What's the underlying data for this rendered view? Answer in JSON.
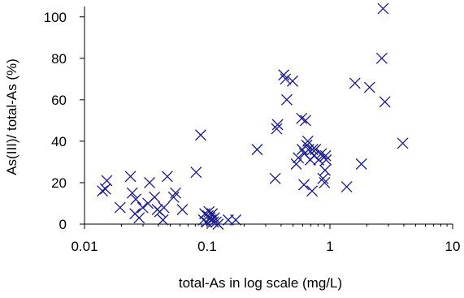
{
  "chart_data": {
    "type": "scatter",
    "title": "",
    "xlabel": "total-As in log scale (mg/L)",
    "ylabel": "As(III)/ total-As (%)",
    "x_scale": "log",
    "xlim": [
      0.01,
      10
    ],
    "ylim": [
      0,
      105
    ],
    "x_ticks": [
      0.01,
      0.1,
      1,
      10
    ],
    "x_tick_labels": [
      "0.01",
      "0.1",
      "1",
      "10"
    ],
    "y_ticks": [
      0,
      20,
      40,
      60,
      80,
      100
    ],
    "y_tick_labels": [
      "0",
      "20",
      "40",
      "60",
      "80",
      "100"
    ],
    "grid": false,
    "legend": "none",
    "marker": "x",
    "marker_color": "#1a1a8c",
    "series": [
      {
        "points": [
          [
            0.014,
            16
          ],
          [
            0.0148,
            17
          ],
          [
            0.0152,
            21
          ],
          [
            0.0195,
            8
          ],
          [
            0.0237,
            23
          ],
          [
            0.0245,
            15
          ],
          [
            0.0258,
            5
          ],
          [
            0.0262,
            12
          ],
          [
            0.0279,
            3
          ],
          [
            0.0298,
            8
          ],
          [
            0.0329,
            10
          ],
          [
            0.0339,
            20
          ],
          [
            0.0372,
            13
          ],
          [
            0.0392,
            7
          ],
          [
            0.0411,
            6
          ],
          [
            0.0436,
            2
          ],
          [
            0.0443,
            8
          ],
          [
            0.0473,
            23
          ],
          [
            0.0533,
            13
          ],
          [
            0.0552,
            15
          ],
          [
            0.0627,
            7
          ],
          [
            0.0812,
            25
          ],
          [
            0.0885,
            43
          ],
          [
            0.0935,
            2
          ],
          [
            0.0956,
            5
          ],
          [
            0.0989,
            1
          ],
          [
            0.1015,
            4
          ],
          [
            0.1035,
            6
          ],
          [
            0.1052,
            3
          ],
          [
            0.1075,
            2
          ],
          [
            0.1098,
            5
          ],
          [
            0.1122,
            1
          ],
          [
            0.1145,
            3
          ],
          [
            0.1182,
            1
          ],
          [
            0.1227,
            0
          ],
          [
            0.1485,
            2
          ],
          [
            0.1708,
            2
          ],
          [
            0.2553,
            36
          ],
          [
            0.3579,
            22
          ],
          [
            0.3681,
            46
          ],
          [
            0.3748,
            48
          ],
          [
            0.4208,
            72
          ],
          [
            0.4351,
            70
          ],
          [
            0.4454,
            60
          ],
          [
            0.496,
            69
          ],
          [
            0.5317,
            29
          ],
          [
            0.5528,
            32
          ],
          [
            0.5886,
            51
          ],
          [
            0.5945,
            36
          ],
          [
            0.6147,
            19
          ],
          [
            0.6208,
            34
          ],
          [
            0.6329,
            50
          ],
          [
            0.6481,
            38
          ],
          [
            0.6611,
            40
          ],
          [
            0.6701,
            36
          ],
          [
            0.6924,
            31
          ],
          [
            0.7155,
            16
          ],
          [
            0.7227,
            36
          ],
          [
            0.7425,
            33
          ],
          [
            0.7628,
            36
          ],
          [
            0.8106,
            31
          ],
          [
            0.8527,
            34
          ],
          [
            0.878,
            22
          ],
          [
            0.9041,
            20
          ],
          [
            0.9126,
            26
          ],
          [
            0.9223,
            33
          ],
          [
            0.9309,
            31
          ],
          [
            1.37,
            18
          ],
          [
            1.599,
            68
          ],
          [
            1.805,
            29
          ],
          [
            2.104,
            66
          ],
          [
            2.648,
            80
          ],
          [
            2.713,
            104
          ],
          [
            2.804,
            59
          ],
          [
            3.918,
            39
          ]
        ]
      }
    ]
  }
}
